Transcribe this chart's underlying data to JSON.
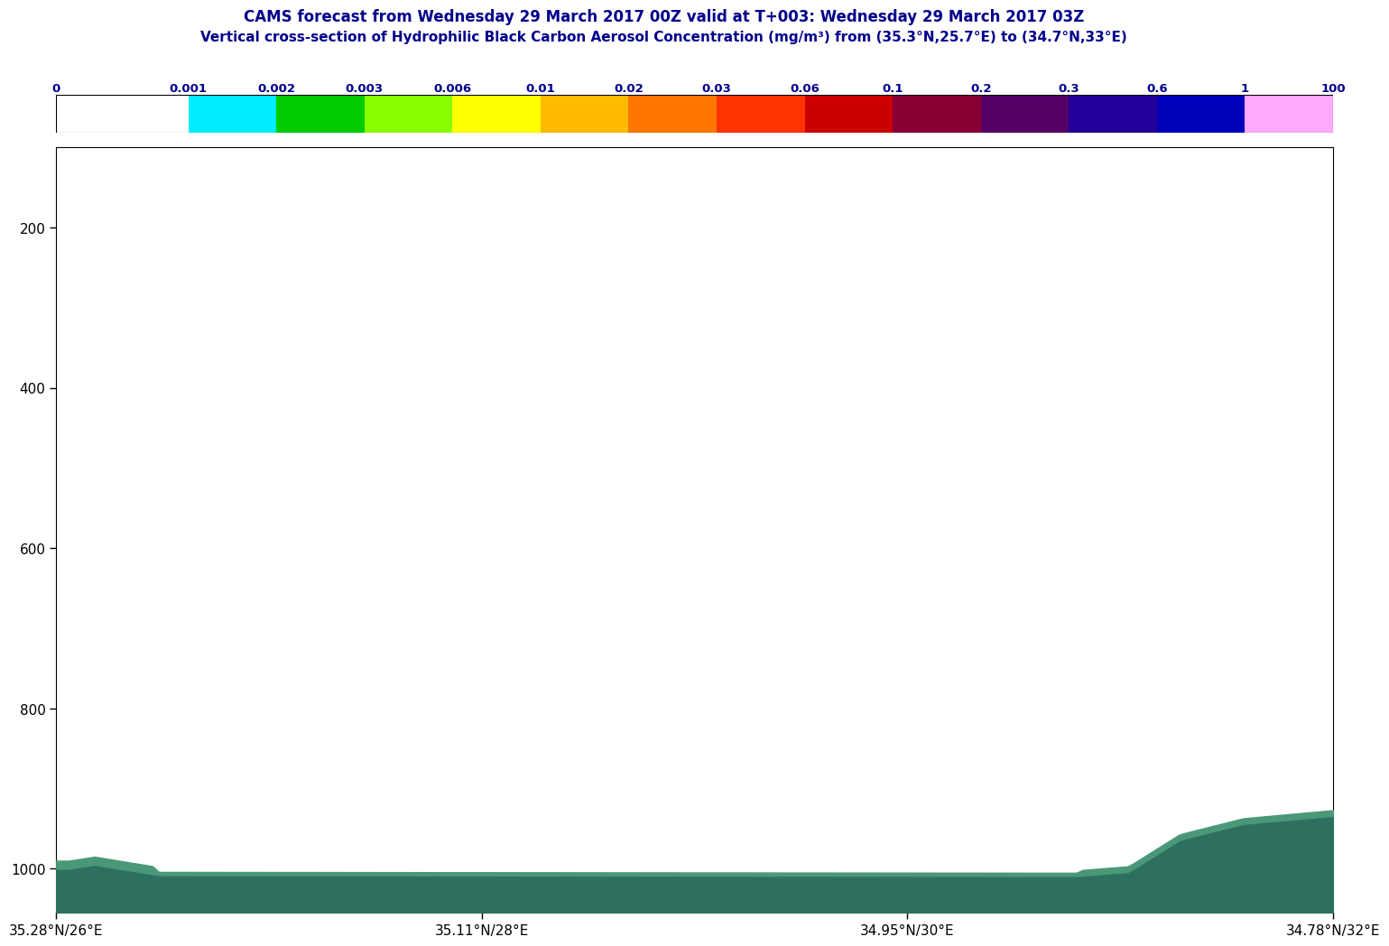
{
  "title_line1": "CAMS forecast from Wednesday 29 March 2017 00Z valid at T+003: Wednesday 29 March 2017 03Z",
  "title_line2": "Vertical cross-section of Hydrophilic Black Carbon Aerosol Concentration (mg/m³) from (35.3°N,25.7°E) to (34.7°N,33°E)",
  "title_color": "#00008B",
  "colorbar_colors": [
    "#FFFFFF",
    "#00EEFF",
    "#00CC00",
    "#88FF00",
    "#FFFF00",
    "#FFBB00",
    "#FF7700",
    "#FF3300",
    "#CC0000",
    "#880033",
    "#550066",
    "#220099",
    "#0000BB",
    "#FFAAFF"
  ],
  "colorbar_tick_labels": [
    "0",
    "0.001",
    "0.002",
    "0.003",
    "0.006",
    "0.01",
    "0.02",
    "0.03",
    "0.06",
    "0.1",
    "0.2",
    "0.3",
    "0.6",
    "1",
    "100"
  ],
  "colorbar_widths": [
    1.5,
    1,
    1,
    1,
    1,
    1,
    1,
    1,
    1,
    1,
    1,
    1,
    1,
    1
  ],
  "yticks": [
    200,
    400,
    600,
    800,
    1000
  ],
  "ylim": [
    1055,
    100
  ],
  "xtick_labels": [
    "35.28°N/26°E",
    "35.11°N/28°E",
    "34.95°N/30°E",
    "34.78°N/32°E"
  ],
  "bg_color": "#FFFFFF",
  "plot_bg_color": "#FFFFFF",
  "fill_color_dark": "#2E7060",
  "fill_color_light": "#4A9878",
  "n_points": 200
}
